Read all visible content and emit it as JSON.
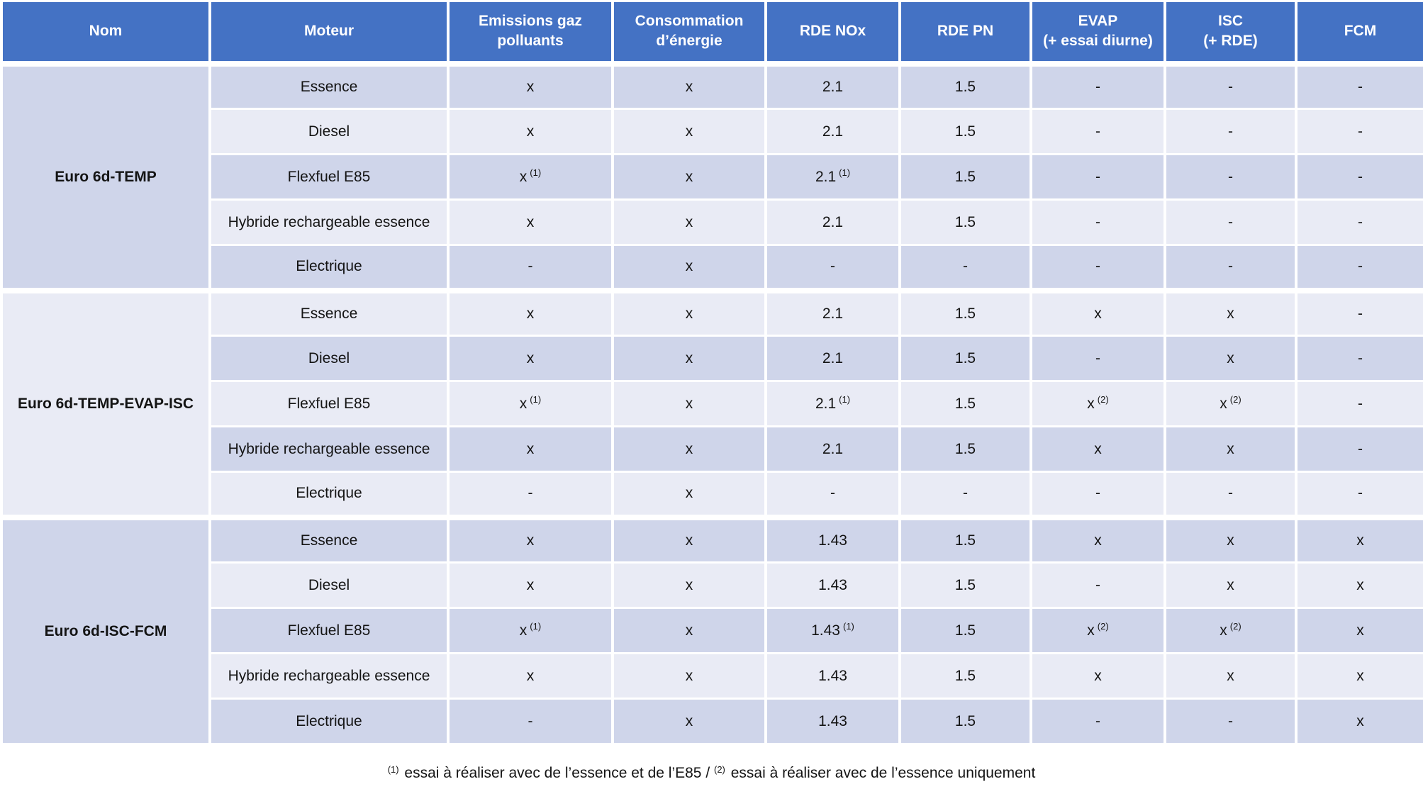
{
  "colors": {
    "header_bg": "#4472C4",
    "header_text": "#FFFFFF",
    "band_dark": "#CFD5EA",
    "band_light": "#E9EBF5",
    "body_text": "#141414",
    "page_bg": "#FFFFFF"
  },
  "chart_data": {
    "type": "table",
    "columns": [
      "Nom",
      "Moteur",
      "Emissions gaz\npolluants",
      "Consommation\nd’énergie",
      "RDE NOx",
      "RDE PN",
      "EVAP\n(+ essai diurne)",
      "ISC\n(+ RDE)",
      "FCM"
    ],
    "groups": [
      {
        "name": "Euro 6d-TEMP",
        "rows": [
          {
            "moteur": "Essence",
            "cells": [
              {
                "v": "x"
              },
              {
                "v": "x"
              },
              {
                "v": "2.1"
              },
              {
                "v": "1.5"
              },
              {
                "v": "-"
              },
              {
                "v": "-"
              },
              {
                "v": "-"
              }
            ]
          },
          {
            "moteur": "Diesel",
            "cells": [
              {
                "v": "x"
              },
              {
                "v": "x"
              },
              {
                "v": "2.1"
              },
              {
                "v": "1.5"
              },
              {
                "v": "-"
              },
              {
                "v": "-"
              },
              {
                "v": "-"
              }
            ]
          },
          {
            "moteur": "Flexfuel E85",
            "cells": [
              {
                "v": "x",
                "sup": "(1)"
              },
              {
                "v": "x"
              },
              {
                "v": "2.1",
                "sup": "(1)"
              },
              {
                "v": "1.5"
              },
              {
                "v": "-"
              },
              {
                "v": "-"
              },
              {
                "v": "-"
              }
            ]
          },
          {
            "moteur": "Hybride rechargeable essence",
            "cells": [
              {
                "v": "x"
              },
              {
                "v": "x"
              },
              {
                "v": "2.1"
              },
              {
                "v": "1.5"
              },
              {
                "v": "-"
              },
              {
                "v": "-"
              },
              {
                "v": "-"
              }
            ]
          },
          {
            "moteur": "Electrique",
            "cells": [
              {
                "v": "-"
              },
              {
                "v": "x"
              },
              {
                "v": "-"
              },
              {
                "v": "-"
              },
              {
                "v": "-"
              },
              {
                "v": "-"
              },
              {
                "v": "-"
              }
            ]
          }
        ]
      },
      {
        "name": "Euro 6d-TEMP-EVAP-ISC",
        "rows": [
          {
            "moteur": "Essence",
            "cells": [
              {
                "v": "x"
              },
              {
                "v": "x"
              },
              {
                "v": "2.1"
              },
              {
                "v": "1.5"
              },
              {
                "v": "x"
              },
              {
                "v": "x"
              },
              {
                "v": "-"
              }
            ]
          },
          {
            "moteur": "Diesel",
            "cells": [
              {
                "v": "x"
              },
              {
                "v": "x"
              },
              {
                "v": "2.1"
              },
              {
                "v": "1.5"
              },
              {
                "v": "-"
              },
              {
                "v": "x"
              },
              {
                "v": "-"
              }
            ]
          },
          {
            "moteur": "Flexfuel E85",
            "cells": [
              {
                "v": "x",
                "sup": "(1)"
              },
              {
                "v": "x"
              },
              {
                "v": "2.1",
                "sup": "(1)"
              },
              {
                "v": "1.5"
              },
              {
                "v": "x",
                "sup": "(2)"
              },
              {
                "v": "x",
                "sup": "(2)"
              },
              {
                "v": "-"
              }
            ]
          },
          {
            "moteur": "Hybride rechargeable essence",
            "cells": [
              {
                "v": "x"
              },
              {
                "v": "x"
              },
              {
                "v": "2.1"
              },
              {
                "v": "1.5"
              },
              {
                "v": "x"
              },
              {
                "v": "x"
              },
              {
                "v": "-"
              }
            ]
          },
          {
            "moteur": "Electrique",
            "cells": [
              {
                "v": "-"
              },
              {
                "v": "x"
              },
              {
                "v": "-"
              },
              {
                "v": "-"
              },
              {
                "v": "-"
              },
              {
                "v": "-"
              },
              {
                "v": "-"
              }
            ]
          }
        ]
      },
      {
        "name": "Euro 6d-ISC-FCM",
        "rows": [
          {
            "moteur": "Essence",
            "cells": [
              {
                "v": "x"
              },
              {
                "v": "x"
              },
              {
                "v": "1.43"
              },
              {
                "v": "1.5"
              },
              {
                "v": "x"
              },
              {
                "v": "x"
              },
              {
                "v": "x"
              }
            ]
          },
          {
            "moteur": "Diesel",
            "cells": [
              {
                "v": "x"
              },
              {
                "v": "x"
              },
              {
                "v": "1.43"
              },
              {
                "v": "1.5"
              },
              {
                "v": "-"
              },
              {
                "v": "x"
              },
              {
                "v": "x"
              }
            ]
          },
          {
            "moteur": "Flexfuel E85",
            "cells": [
              {
                "v": "x",
                "sup": "(1)"
              },
              {
                "v": "x"
              },
              {
                "v": "1.43",
                "sup": "(1)"
              },
              {
                "v": "1.5"
              },
              {
                "v": "x",
                "sup": "(2)"
              },
              {
                "v": "x",
                "sup": "(2)"
              },
              {
                "v": "x"
              }
            ]
          },
          {
            "moteur": "Hybride rechargeable essence",
            "cells": [
              {
                "v": "x"
              },
              {
                "v": "x"
              },
              {
                "v": "1.43"
              },
              {
                "v": "1.5"
              },
              {
                "v": "x"
              },
              {
                "v": "x"
              },
              {
                "v": "x"
              }
            ]
          },
          {
            "moteur": "Electrique",
            "cells": [
              {
                "v": "-"
              },
              {
                "v": "x"
              },
              {
                "v": "1.43"
              },
              {
                "v": "1.5"
              },
              {
                "v": "-"
              },
              {
                "v": "-"
              },
              {
                "v": "x"
              }
            ]
          }
        ]
      }
    ]
  },
  "footnote": {
    "marker1": "(1)",
    "text1": " essai à réaliser avec de l’essence et de l’E85 / ",
    "marker2": "(2)",
    "text2": " essai à réaliser avec de l’essence uniquement"
  }
}
